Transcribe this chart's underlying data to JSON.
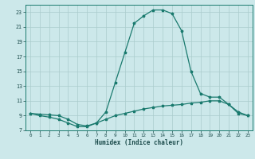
{
  "xlabel": "Humidex (Indice chaleur)",
  "background_color": "#cce8ea",
  "grid_color": "#aacccc",
  "line_color": "#1a7a6e",
  "xlim": [
    -0.5,
    23.5
  ],
  "ylim": [
    7,
    24
  ],
  "xticks": [
    0,
    1,
    2,
    3,
    4,
    5,
    6,
    7,
    8,
    9,
    10,
    11,
    12,
    13,
    14,
    15,
    16,
    17,
    18,
    19,
    20,
    21,
    22,
    23
  ],
  "yticks": [
    7,
    9,
    11,
    13,
    15,
    17,
    19,
    21,
    23
  ],
  "series1_x": [
    0,
    1,
    2,
    3,
    4,
    5,
    6,
    7,
    8,
    9,
    10,
    11,
    12,
    13,
    14,
    15,
    16,
    17,
    18,
    19,
    20,
    21,
    22,
    23
  ],
  "series1_y": [
    9.3,
    9.2,
    9.1,
    9.0,
    8.5,
    7.8,
    7.6,
    8.0,
    9.5,
    13.5,
    17.5,
    21.5,
    22.5,
    23.3,
    23.3,
    22.8,
    20.5,
    15.0,
    12.0,
    11.5,
    11.5,
    10.5,
    9.5,
    9.0
  ],
  "series2_x": [
    0,
    1,
    2,
    3,
    4,
    5,
    6,
    7,
    8,
    9,
    10,
    11,
    12,
    13,
    14,
    15,
    16,
    17,
    18,
    19,
    20,
    21,
    22,
    23
  ],
  "series2_y": [
    9.3,
    9.0,
    8.8,
    8.5,
    8.0,
    7.5,
    7.5,
    8.0,
    8.5,
    9.0,
    9.3,
    9.6,
    9.9,
    10.1,
    10.3,
    10.4,
    10.5,
    10.7,
    10.8,
    11.0,
    11.0,
    10.5,
    9.3,
    9.0
  ]
}
